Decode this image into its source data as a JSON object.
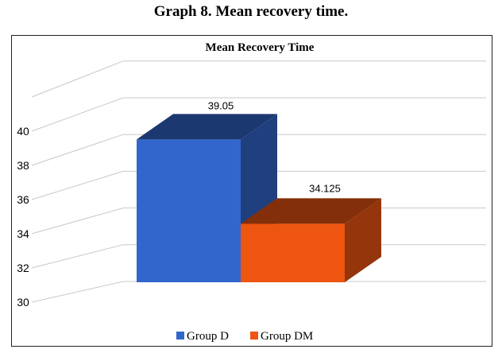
{
  "caption": "Graph 8. Mean recovery time.",
  "chart_data": {
    "type": "bar",
    "title": "Mean Recovery Time",
    "categories": [
      ""
    ],
    "series": [
      {
        "name": "Group D",
        "values": [
          39.05
        ],
        "data_label": "39.05",
        "color": "#3366cc"
      },
      {
        "name": "Group DM",
        "values": [
          34.125
        ],
        "data_label": "34.125",
        "color": "#ee5511"
      }
    ],
    "yticks": [
      "30",
      "32",
      "34",
      "36",
      "38",
      "40"
    ],
    "ylim": [
      30,
      42
    ],
    "grid": true,
    "legend": "bottom",
    "style": "3d-column"
  }
}
